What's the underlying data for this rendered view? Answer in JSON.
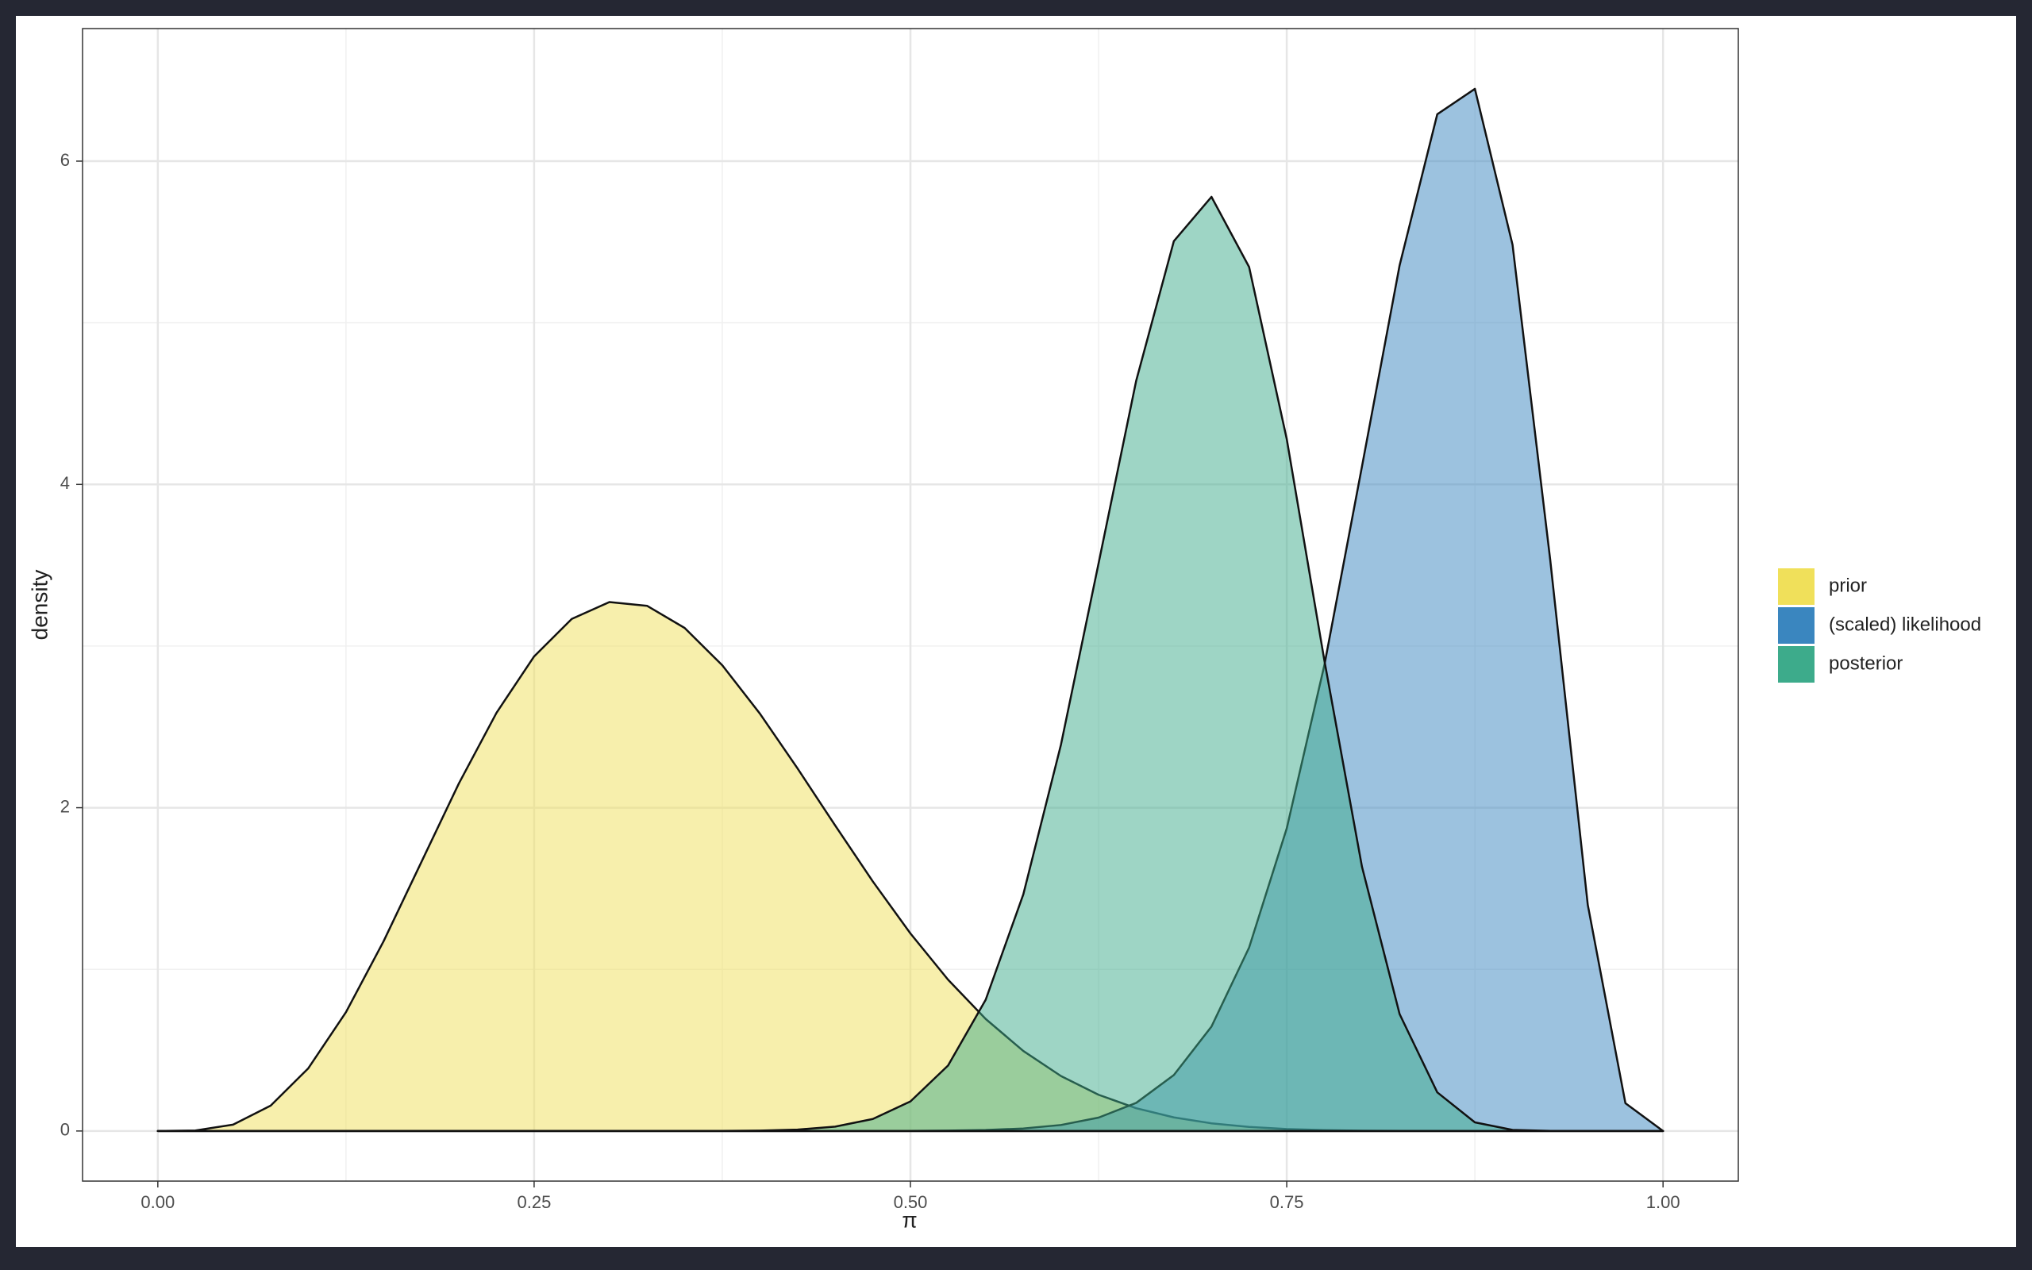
{
  "chart_data": {
    "type": "area",
    "x_label": "π",
    "y_label": "density",
    "x": [
      0,
      0.025,
      0.05,
      0.075,
      0.1,
      0.125,
      0.15,
      0.175,
      0.2,
      0.225,
      0.25,
      0.275,
      0.3,
      0.325,
      0.35,
      0.375,
      0.4,
      0.425,
      0.45,
      0.475,
      0.5,
      0.525,
      0.55,
      0.575,
      0.6,
      0.625,
      0.65,
      0.675,
      0.7,
      0.725,
      0.75,
      0.775,
      0.8,
      0.825,
      0.85,
      0.875,
      0.9,
      0.925,
      0.95,
      0.975,
      1
    ],
    "series": [
      {
        "name": "prior",
        "color": "#f0e05a",
        "values": [
          0,
          0.0031,
          0.0394,
          0.157,
          0.388,
          0.735,
          1.174,
          1.662,
          2.15,
          2.587,
          2.936,
          3.168,
          3.272,
          3.249,
          3.112,
          2.881,
          2.582,
          2.243,
          1.89,
          1.544,
          1.222,
          0.936,
          0.693,
          0.495,
          0.34,
          0.224,
          0.141,
          0.0841,
          0.0473,
          0.0249,
          0.0121,
          0.0053,
          0.0021,
          0.0007,
          0.0002,
          0,
          0,
          0,
          0,
          0,
          0
        ]
      },
      {
        "name": "(scaled) likelihood",
        "color": "#3a86bf",
        "values": [
          0,
          0,
          0,
          0,
          0,
          0,
          0,
          0,
          0,
          0,
          0,
          0,
          0,
          0,
          0,
          0,
          0,
          0,
          0.0001,
          0.0003,
          0.0008,
          0.0023,
          0.0062,
          0.0156,
          0.0371,
          0.0828,
          0.174,
          0.346,
          0.646,
          1.135,
          1.872,
          2.882,
          4.112,
          5.356,
          6.29,
          6.447,
          5.483,
          3.537,
          1.399,
          0.172,
          0
        ]
      },
      {
        "name": "posterior",
        "color": "#3dab8b",
        "values": [
          0,
          0,
          0,
          0,
          0,
          0,
          0,
          0,
          0,
          0,
          0,
          0,
          0,
          0,
          0.0001,
          0.0006,
          0.0024,
          0.0086,
          0.0268,
          0.0741,
          0.183,
          0.405,
          0.812,
          1.464,
          2.39,
          3.512,
          4.642,
          5.505,
          5.779,
          5.345,
          4.281,
          2.911,
          1.634,
          0.723,
          0.239,
          0.0534,
          0.0068,
          0.0004,
          0,
          0,
          0
        ]
      }
    ],
    "xlim": [
      -0.05,
      1.05
    ],
    "ylim": [
      -0.31,
      6.82
    ],
    "xticks": [
      {
        "value": 0,
        "label": "0.00"
      },
      {
        "value": 0.25,
        "label": "0.25"
      },
      {
        "value": 0.5,
        "label": "0.50"
      },
      {
        "value": 0.75,
        "label": "0.75"
      },
      {
        "value": 1,
        "label": "1.00"
      }
    ],
    "yticks": [
      0,
      2,
      4,
      6
    ],
    "x_minor_ticks": [
      0.125,
      0.375,
      0.625,
      0.875
    ],
    "y_minor_ticks": [
      1,
      3,
      5
    ],
    "grid": true,
    "fill_opacity": 0.5,
    "legend_position": "right"
  }
}
